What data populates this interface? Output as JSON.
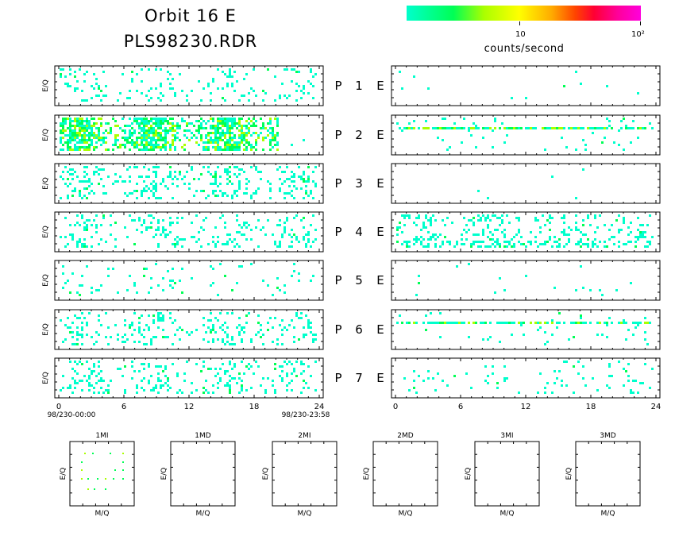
{
  "header": {
    "title_line1": "Orbit 16 E",
    "title_line2": "PLS98230.RDR"
  },
  "colorbar": {
    "label_10": "10",
    "label_100": "10²",
    "title": "counts/second",
    "colors": [
      "#00ffcc",
      "#00ff55",
      "#aaff00",
      "#ffff00",
      "#ffaa00",
      "#ff4400",
      "#ff0033",
      "#ff0099",
      "#ff00dd"
    ]
  },
  "chart_data": [
    {
      "type": "heatmap",
      "name": "left-column",
      "panels": [
        "P 1",
        "P 2",
        "P 3",
        "P 4",
        "P 5",
        "P 6",
        "P 7"
      ],
      "panel_side_label": "E",
      "ylabel": "E/Q",
      "xlim": [
        0,
        24
      ],
      "xticks": [
        "0",
        "6",
        "12",
        "18",
        "24"
      ],
      "x_start_label": "98/230-00:00",
      "x_end_label": "98/230-23:58",
      "density": [
        0.1,
        0.55,
        0.18,
        0.14,
        0.05,
        0.13,
        0.14
      ]
    },
    {
      "type": "heatmap",
      "name": "right-column",
      "panels": [
        "P 1",
        "P 2",
        "P 3",
        "P 4",
        "P 5",
        "P 6",
        "P 7"
      ],
      "xlim": [
        0,
        24
      ],
      "xticks": [
        "0",
        "6",
        "12",
        "18",
        "24"
      ],
      "density": [
        0.01,
        0.08,
        0.005,
        0.17,
        0.01,
        0.09,
        0.05
      ]
    },
    {
      "type": "scatter",
      "name": "mq-panels",
      "titles": [
        "1MI",
        "1MD",
        "2MI",
        "2MD",
        "3MI",
        "3MD"
      ],
      "xlabel": "M/Q",
      "ylabel": "E/Q"
    }
  ]
}
